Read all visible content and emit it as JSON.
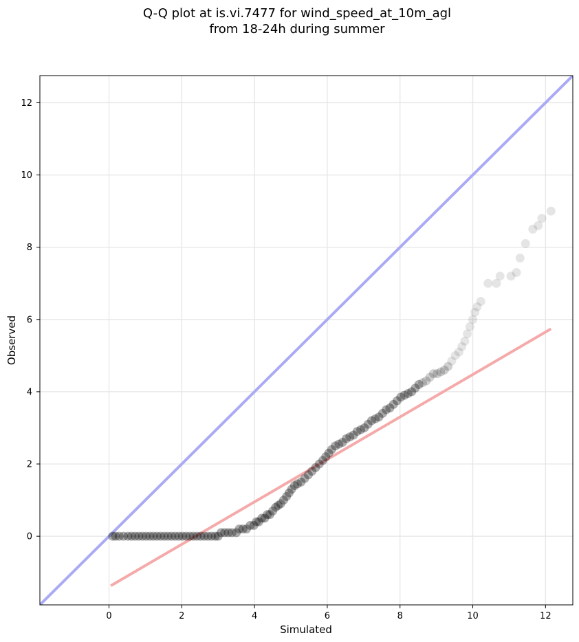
{
  "chart_data": {
    "type": "scatter",
    "title": "Q-Q plot at is.vi.7477 for wind_speed_at_10m_agl",
    "subtitle": "from 18-24h during summer",
    "xlabel": "Simulated",
    "ylabel": "Observed",
    "xlim": [
      -1.9,
      12.75
    ],
    "ylim": [
      -1.9,
      12.75
    ],
    "xticks": [
      0,
      2,
      4,
      6,
      8,
      10,
      12
    ],
    "yticks": [
      0,
      2,
      4,
      6,
      8,
      10,
      12
    ],
    "grid": true,
    "point_color": "#000000",
    "identity_line": {
      "color": "#aaaaf5",
      "x": [
        -1.9,
        12.75
      ],
      "y": [
        -1.9,
        12.75
      ]
    },
    "fit_line": {
      "color": "#f5aaaa",
      "x": [
        0.05,
        12.15
      ],
      "y": [
        -1.37,
        5.74
      ]
    },
    "points": [
      [
        0.1,
        0.0
      ],
      [
        0.18,
        0.0
      ],
      [
        0.28,
        0.0
      ],
      [
        0.4,
        0.0
      ],
      [
        0.52,
        0.0
      ],
      [
        0.62,
        0.0
      ],
      [
        0.72,
        0.0
      ],
      [
        0.82,
        0.0
      ],
      [
        0.92,
        0.0
      ],
      [
        1.02,
        0.0
      ],
      [
        1.12,
        0.0
      ],
      [
        1.22,
        0.0
      ],
      [
        1.32,
        0.0
      ],
      [
        1.42,
        0.0
      ],
      [
        1.52,
        0.0
      ],
      [
        1.62,
        0.0
      ],
      [
        1.72,
        0.0
      ],
      [
        1.82,
        0.0
      ],
      [
        1.92,
        0.0
      ],
      [
        2.02,
        0.0
      ],
      [
        2.12,
        0.0
      ],
      [
        2.22,
        0.0
      ],
      [
        2.32,
        0.0
      ],
      [
        2.42,
        0.0
      ],
      [
        2.52,
        0.0
      ],
      [
        2.62,
        0.0
      ],
      [
        2.72,
        0.0
      ],
      [
        2.82,
        0.0
      ],
      [
        2.92,
        0.0
      ],
      [
        3.0,
        0.0
      ],
      [
        3.08,
        0.1
      ],
      [
        3.18,
        0.1
      ],
      [
        3.28,
        0.1
      ],
      [
        3.38,
        0.1
      ],
      [
        3.5,
        0.1
      ],
      [
        3.58,
        0.2
      ],
      [
        3.68,
        0.2
      ],
      [
        3.78,
        0.2
      ],
      [
        3.88,
        0.3
      ],
      [
        3.98,
        0.3
      ],
      [
        4.05,
        0.4
      ],
      [
        4.12,
        0.4
      ],
      [
        4.2,
        0.5
      ],
      [
        4.28,
        0.5
      ],
      [
        4.35,
        0.6
      ],
      [
        4.42,
        0.6
      ],
      [
        4.5,
        0.7
      ],
      [
        4.58,
        0.8
      ],
      [
        4.65,
        0.85
      ],
      [
        4.72,
        0.9
      ],
      [
        4.8,
        1.0
      ],
      [
        4.88,
        1.1
      ],
      [
        4.95,
        1.2
      ],
      [
        5.02,
        1.3
      ],
      [
        5.1,
        1.4
      ],
      [
        5.18,
        1.45
      ],
      [
        5.28,
        1.5
      ],
      [
        5.38,
        1.6
      ],
      [
        5.48,
        1.7
      ],
      [
        5.58,
        1.8
      ],
      [
        5.68,
        1.9
      ],
      [
        5.78,
        2.0
      ],
      [
        5.88,
        2.1
      ],
      [
        5.96,
        2.2
      ],
      [
        6.04,
        2.3
      ],
      [
        6.12,
        2.4
      ],
      [
        6.22,
        2.5
      ],
      [
        6.32,
        2.55
      ],
      [
        6.42,
        2.6
      ],
      [
        6.52,
        2.7
      ],
      [
        6.62,
        2.75
      ],
      [
        6.72,
        2.8
      ],
      [
        6.82,
        2.9
      ],
      [
        6.92,
        2.95
      ],
      [
        7.02,
        3.0
      ],
      [
        7.12,
        3.1
      ],
      [
        7.22,
        3.2
      ],
      [
        7.32,
        3.25
      ],
      [
        7.42,
        3.3
      ],
      [
        7.52,
        3.4
      ],
      [
        7.62,
        3.5
      ],
      [
        7.72,
        3.55
      ],
      [
        7.82,
        3.65
      ],
      [
        7.92,
        3.75
      ],
      [
        8.02,
        3.85
      ],
      [
        8.12,
        3.9
      ],
      [
        8.22,
        3.95
      ],
      [
        8.32,
        4.0
      ],
      [
        8.42,
        4.1
      ],
      [
        8.52,
        4.2
      ],
      [
        8.62,
        4.25
      ],
      [
        8.72,
        4.3
      ],
      [
        8.82,
        4.4
      ],
      [
        8.92,
        4.5
      ],
      [
        9.02,
        4.5
      ],
      [
        9.12,
        4.55
      ],
      [
        9.22,
        4.6
      ],
      [
        9.32,
        4.7
      ],
      [
        9.42,
        4.85
      ],
      [
        9.52,
        5.0
      ],
      [
        9.62,
        5.1
      ],
      [
        9.7,
        5.25
      ],
      [
        9.78,
        5.4
      ],
      [
        9.85,
        5.6
      ],
      [
        9.92,
        5.8
      ],
      [
        10.0,
        6.0
      ],
      [
        10.06,
        6.2
      ],
      [
        10.12,
        6.35
      ],
      [
        10.22,
        6.5
      ],
      [
        10.42,
        7.0
      ],
      [
        10.65,
        7.0
      ],
      [
        10.75,
        7.2
      ],
      [
        11.05,
        7.2
      ],
      [
        11.2,
        7.3
      ],
      [
        11.3,
        7.7
      ],
      [
        11.45,
        8.1
      ],
      [
        11.65,
        8.5
      ],
      [
        11.8,
        8.6
      ],
      [
        11.9,
        8.8
      ],
      [
        12.15,
        9.0
      ]
    ]
  }
}
